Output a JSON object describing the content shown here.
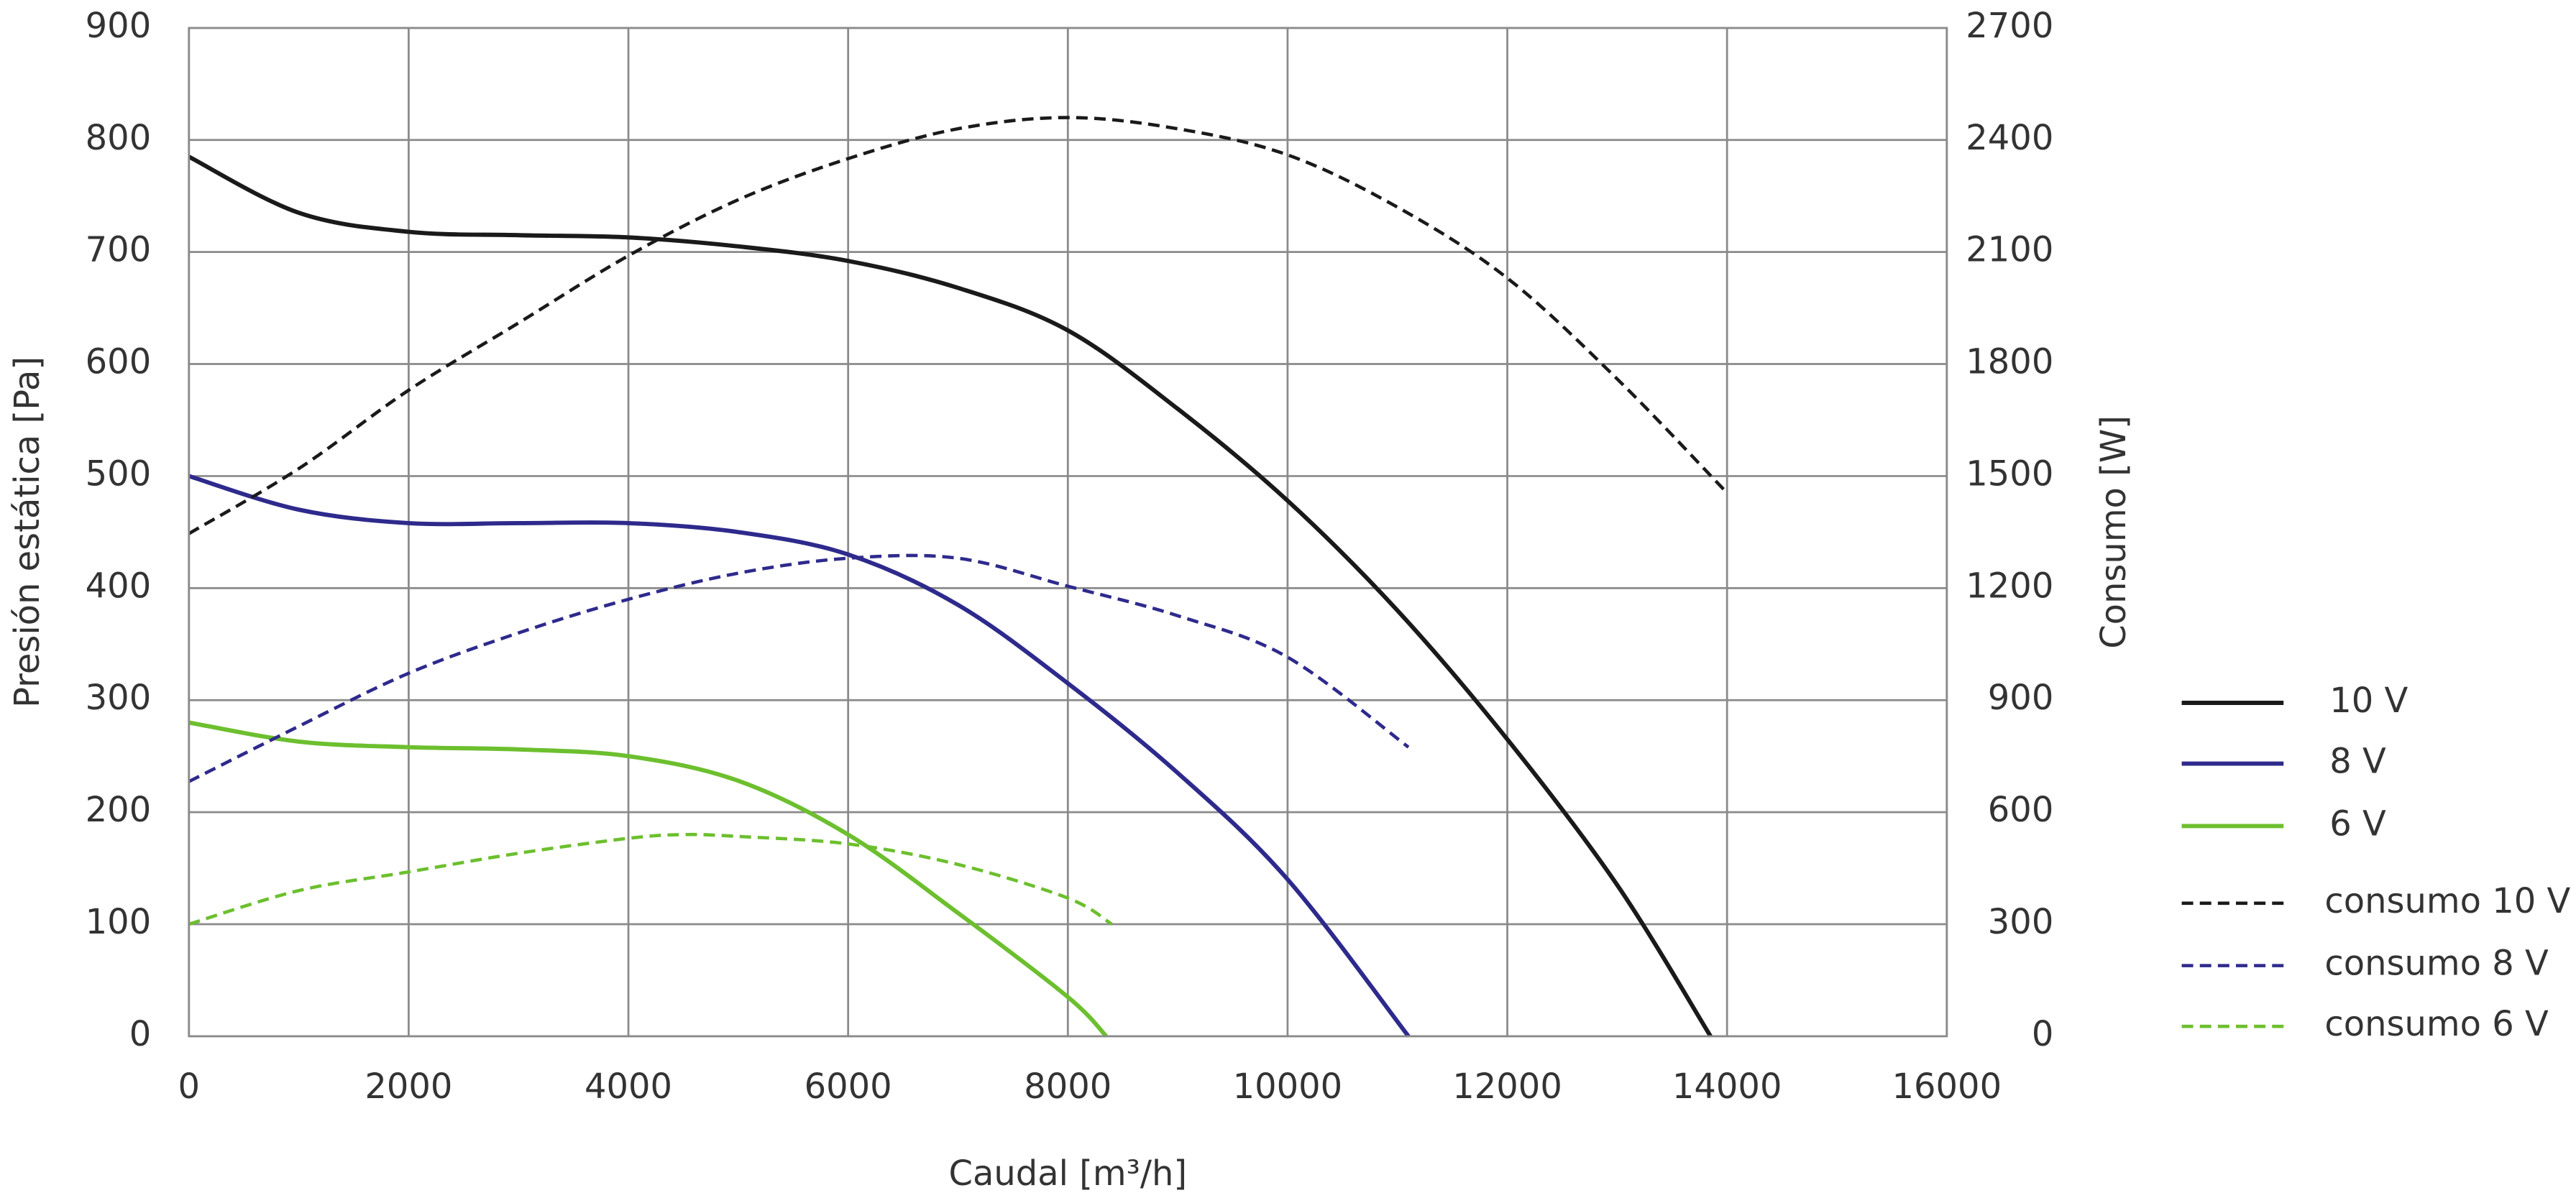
{
  "chart_data": {
    "type": "line",
    "x_label": "Caudal [m³/h]",
    "y_label": "Presión estática [Pa]",
    "y2_label": "Consumo [W]",
    "xlim": [
      0,
      16000
    ],
    "xticks": [
      0,
      2000,
      4000,
      6000,
      8000,
      10000,
      12000,
      14000,
      16000
    ],
    "ylim": [
      0,
      900
    ],
    "yticks": [
      0,
      100,
      200,
      300,
      400,
      500,
      600,
      700,
      800,
      900
    ],
    "y2lim": [
      0,
      2700
    ],
    "y2ticks": [
      0,
      300,
      600,
      900,
      1200,
      1500,
      1800,
      2100,
      2400,
      2700
    ],
    "grid": true,
    "legend": "right",
    "series": [
      {
        "name": "10 V",
        "color": "#1a1a1a",
        "dashed": false,
        "x": [
          0,
          1000,
          2000,
          3000,
          4000,
          5000,
          6000,
          7000,
          8000,
          9000,
          10000,
          11000,
          12000,
          13000,
          13850
        ],
        "values": [
          785,
          735,
          718,
          715,
          713,
          705,
          692,
          668,
          630,
          560,
          478,
          380,
          265,
          135,
          0
        ]
      },
      {
        "name": "8 V",
        "color": "#2e2a8c",
        "dashed": false,
        "x": [
          0,
          1000,
          2000,
          3000,
          4000,
          5000,
          6000,
          7000,
          8000,
          9000,
          10000,
          11100
        ],
        "values": [
          500,
          470,
          458,
          458,
          458,
          450,
          430,
          385,
          315,
          235,
          140,
          0
        ]
      },
      {
        "name": "6 V",
        "color": "#6cbf2e",
        "dashed": false,
        "x": [
          0,
          1000,
          2000,
          3000,
          4000,
          5000,
          6000,
          7000,
          8000,
          8350
        ],
        "values": [
          280,
          263,
          258,
          256,
          250,
          228,
          180,
          110,
          35,
          0
        ]
      },
      {
        "name": "consumo 10 V",
        "color": "#1a1a1a",
        "dashed": true,
        "axis": "y2",
        "x": [
          0,
          1000,
          2000,
          3000,
          4000,
          5000,
          6000,
          7000,
          8000,
          9000,
          10000,
          11000,
          12000,
          13000,
          14000
        ],
        "values": [
          1346,
          1520,
          1730,
          1910,
          2090,
          2240,
          2350,
          2430,
          2460,
          2430,
          2360,
          2220,
          2030,
          1760,
          1455
        ]
      },
      {
        "name": "consumo 8 V",
        "color": "#2e2a8c",
        "dashed": true,
        "axis": "y2",
        "x": [
          0,
          1000,
          2000,
          3000,
          4000,
          5000,
          6000,
          7000,
          8000,
          9000,
          10000,
          11100
        ],
        "values": [
          682,
          830,
          972,
          1080,
          1170,
          1240,
          1280,
          1280,
          1205,
          1126,
          1015,
          774
        ]
      },
      {
        "name": "consumo 6 V",
        "color": "#6cbf2e",
        "dashed": true,
        "axis": "y2",
        "x": [
          0,
          1000,
          2000,
          3000,
          4000,
          4500,
          5000,
          6000,
          7000,
          8000,
          8400
        ],
        "values": [
          300,
          390,
          440,
          490,
          530,
          540,
          535,
          515,
          460,
          370,
          300
        ]
      }
    ]
  }
}
